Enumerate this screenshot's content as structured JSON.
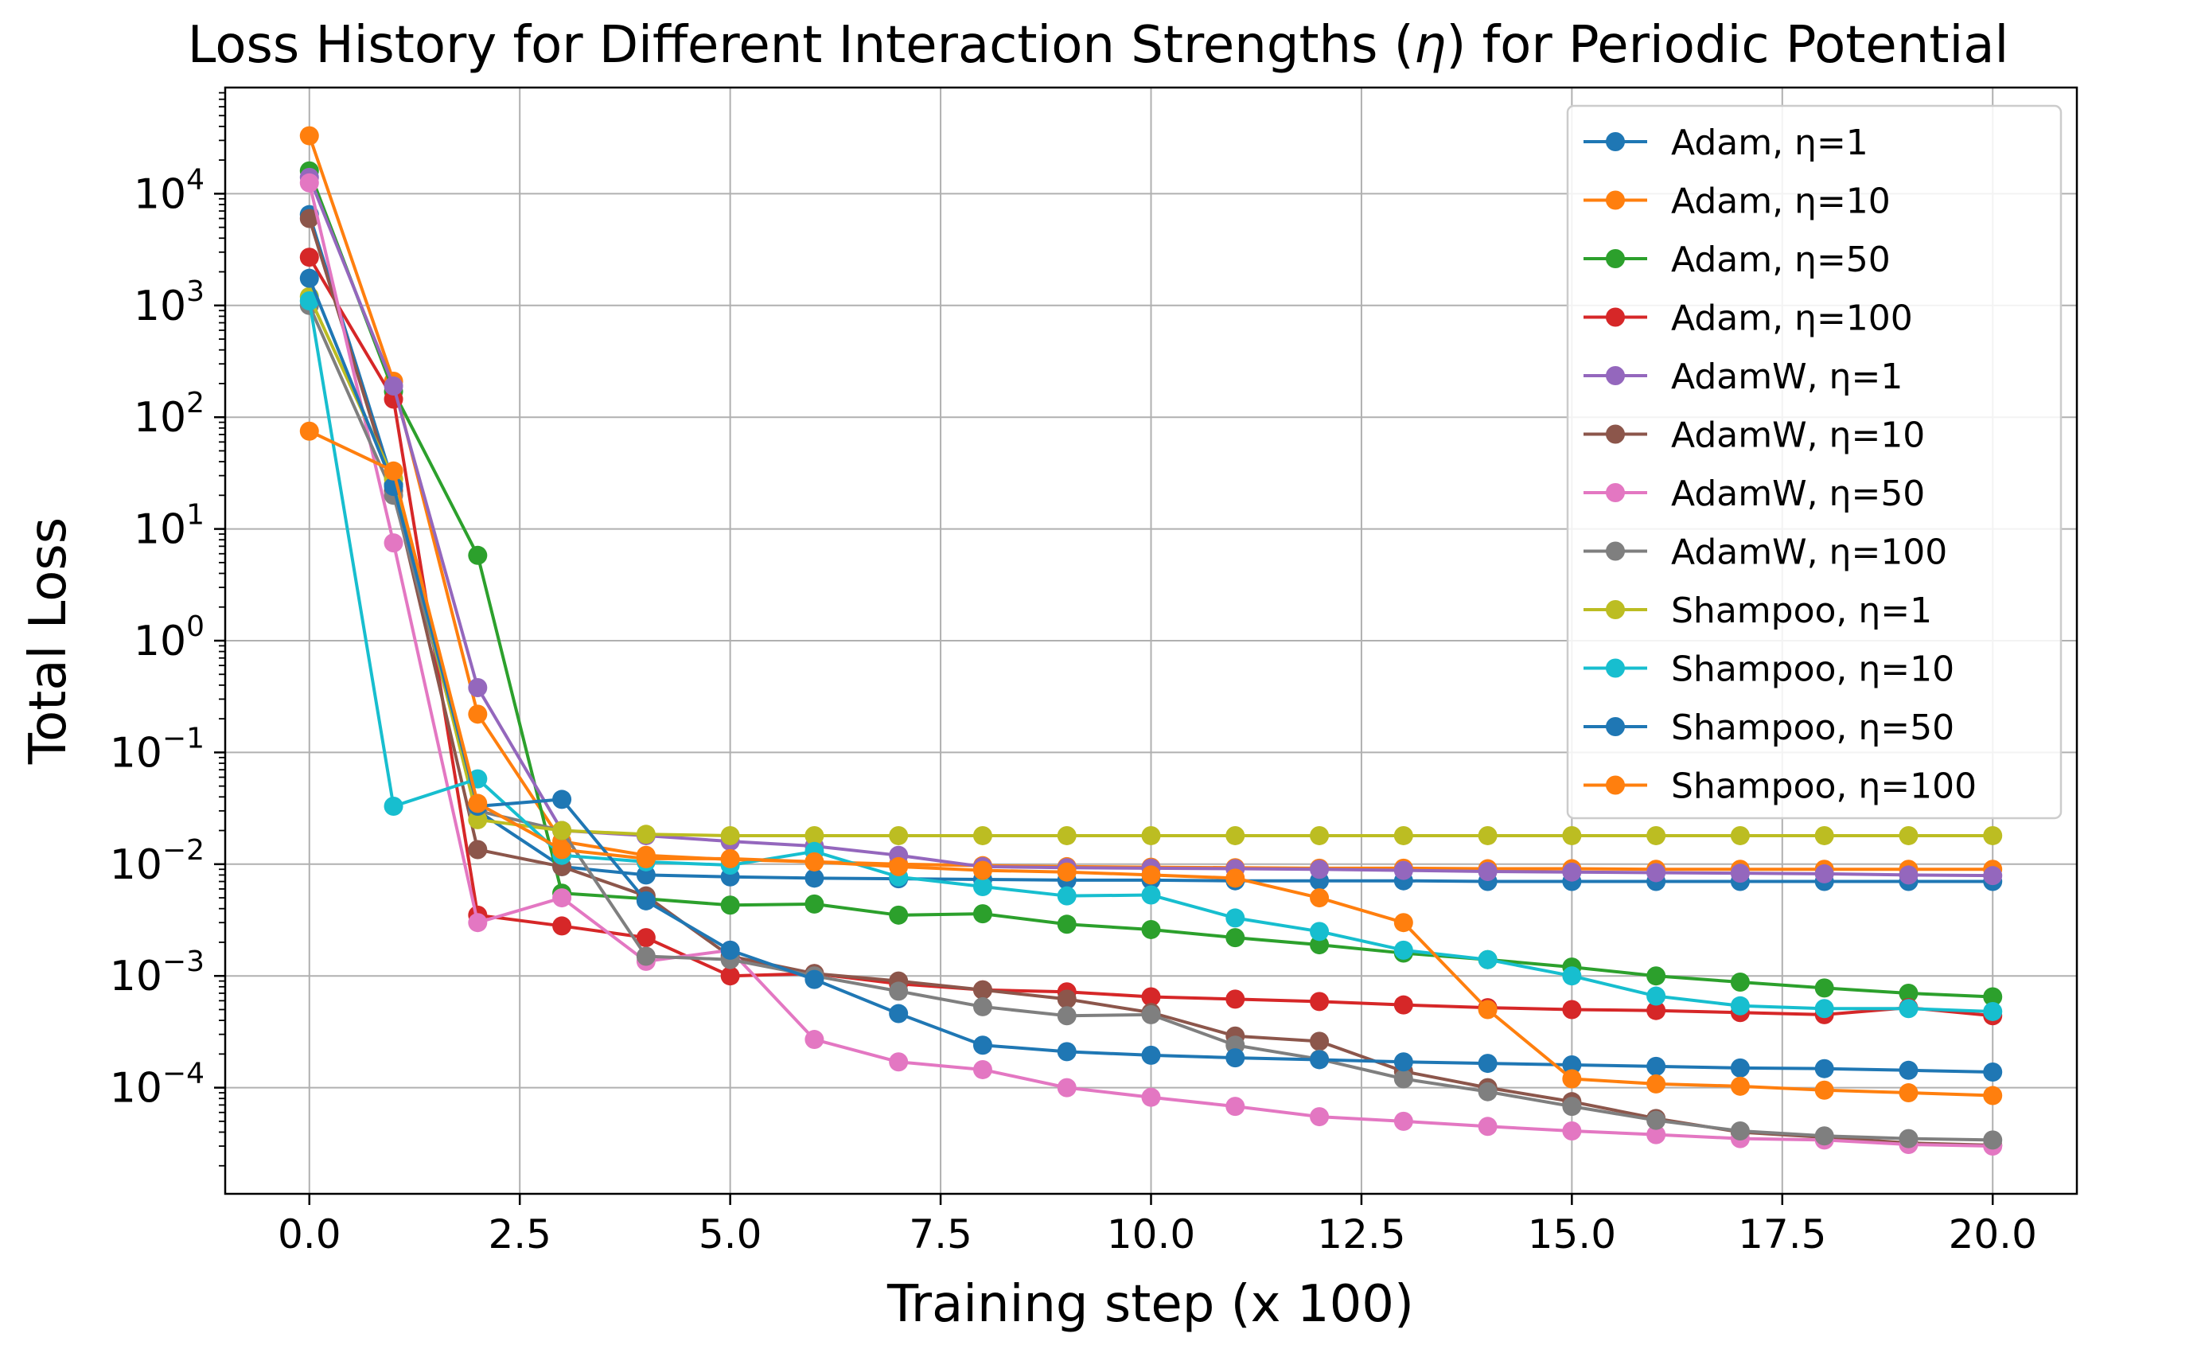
{
  "chart_data": {
    "type": "line",
    "title_prefix": "Loss History for Different Interaction Strengths (",
    "title_symbol": "η",
    "title_suffix": ") for Periodic Potential",
    "xlabel": "Training step (x 100)",
    "ylabel": "Total Loss",
    "y_scale": "log",
    "xlim": [
      -1.0,
      21.0
    ],
    "ylim_log10": [
      -4.95,
      4.95
    ],
    "grid": true,
    "legend_position": "top-right",
    "x_ticks": [
      0.0,
      2.5,
      5.0,
      7.5,
      10.0,
      12.5,
      15.0,
      17.5,
      20.0
    ],
    "x_tick_labels": [
      "0.0",
      "2.5",
      "5.0",
      "7.5",
      "10.0",
      "12.5",
      "15.0",
      "17.5",
      "20.0"
    ],
    "y_tick_base": "10",
    "y_tick_exponents": [
      "4",
      "3",
      "2",
      "1",
      "0",
      "−1",
      "−2",
      "−3",
      "−4"
    ],
    "y_tick_values": [
      4,
      3,
      2,
      1,
      0,
      -1,
      -2,
      -3,
      -4
    ],
    "x": [
      0,
      1,
      2,
      3,
      4,
      5,
      6,
      7,
      8,
      9,
      10,
      11,
      12,
      13,
      14,
      15,
      16,
      17,
      18,
      19,
      20
    ],
    "series": [
      {
        "name": "Adam, η=1",
        "color": "#1f77b4",
        "values": [
          6500,
          25,
          0.03,
          0.0095,
          0.008,
          0.0077,
          0.0075,
          0.0074,
          0.0073,
          0.0072,
          0.0072,
          0.0071,
          0.0071,
          0.0071,
          0.007,
          0.007,
          0.007,
          0.007,
          0.007,
          0.007,
          0.007
        ]
      },
      {
        "name": "Adam, η=10",
        "color": "#ff7f0e",
        "values": [
          33000,
          210,
          0.22,
          0.016,
          0.012,
          0.011,
          0.0105,
          0.01,
          0.0097,
          0.0095,
          0.0094,
          0.0093,
          0.0092,
          0.0092,
          0.0091,
          0.0091,
          0.009,
          0.009,
          0.009,
          0.009,
          0.009
        ]
      },
      {
        "name": "Adam, η=50",
        "color": "#2ca02c",
        "values": [
          16000,
          170,
          5.8,
          0.0055,
          0.0049,
          0.0043,
          0.0044,
          0.0035,
          0.0036,
          0.0029,
          0.0026,
          0.0022,
          0.0019,
          0.0016,
          0.0014,
          0.0012,
          0.001,
          0.00088,
          0.00078,
          0.0007,
          0.00065
        ]
      },
      {
        "name": "Adam, η=100",
        "color": "#d62728",
        "values": [
          2700,
          145,
          0.0035,
          0.0028,
          0.0022,
          0.001,
          0.00105,
          0.00085,
          0.00075,
          0.00072,
          0.00065,
          0.00062,
          0.00059,
          0.00055,
          0.00052,
          0.0005,
          0.00049,
          0.00047,
          0.00045,
          0.00052,
          0.00044
        ]
      },
      {
        "name": "AdamW, η=1",
        "color": "#9467bd",
        "values": [
          14000,
          190,
          0.38,
          0.02,
          0.018,
          0.016,
          0.0145,
          0.012,
          0.0095,
          0.0093,
          0.0092,
          0.0091,
          0.009,
          0.0088,
          0.0086,
          0.0085,
          0.0084,
          0.0083,
          0.0082,
          0.008,
          0.0079
        ]
      },
      {
        "name": "AdamW, η=10",
        "color": "#8c564b",
        "values": [
          6000,
          22,
          0.0135,
          0.0095,
          0.0052,
          0.0015,
          0.00105,
          0.0009,
          0.00075,
          0.00062,
          0.00047,
          0.00029,
          0.00026,
          0.00014,
          0.0001,
          7.5e-05,
          5.3e-05,
          4e-05,
          3.6e-05,
          3.2e-05,
          3.05e-05
        ]
      },
      {
        "name": "AdamW, η=50",
        "color": "#e377c2",
        "values": [
          12500,
          7.5,
          0.003,
          0.005,
          0.00135,
          0.0017,
          0.00027,
          0.00017,
          0.000145,
          0.0001,
          8.2e-05,
          6.8e-05,
          5.5e-05,
          5e-05,
          4.5e-05,
          4.1e-05,
          3.8e-05,
          3.5e-05,
          3.4e-05,
          3.1e-05,
          3e-05
        ]
      },
      {
        "name": "AdamW, η=100",
        "color": "#7f7f7f",
        "values": [
          1000,
          20,
          0.03,
          0.02,
          0.0015,
          0.0014,
          0.001,
          0.00073,
          0.00053,
          0.00044,
          0.00045,
          0.00024,
          0.00018,
          0.00012,
          9.2e-05,
          6.8e-05,
          5.1e-05,
          4.1e-05,
          3.7e-05,
          3.5e-05,
          3.4e-05
        ]
      },
      {
        "name": "Shampoo, η=1",
        "color": "#bcbd22",
        "values": [
          1200,
          28,
          0.025,
          0.02,
          0.0185,
          0.018,
          0.018,
          0.018,
          0.018,
          0.018,
          0.018,
          0.018,
          0.018,
          0.018,
          0.018,
          0.018,
          0.018,
          0.018,
          0.018,
          0.018,
          0.018
        ]
      },
      {
        "name": "Shampoo, η=10",
        "color": "#17becf",
        "values": [
          1100,
          0.033,
          0.058,
          0.012,
          0.0105,
          0.0098,
          0.013,
          0.0077,
          0.0063,
          0.0052,
          0.0053,
          0.0033,
          0.0025,
          0.0017,
          0.0014,
          0.001,
          0.00066,
          0.00054,
          0.00051,
          0.00051,
          0.00048
        ]
      },
      {
        "name": "Shampoo, η=50",
        "color": "#1f77b4",
        "values": [
          1750,
          24,
          0.033,
          0.038,
          0.0047,
          0.0017,
          0.00093,
          0.00046,
          0.00024,
          0.00021,
          0.000195,
          0.000185,
          0.000178,
          0.00017,
          0.000165,
          0.00016,
          0.000155,
          0.00015,
          0.000148,
          0.000143,
          0.000138
        ]
      },
      {
        "name": "Shampoo, η=100",
        "color": "#ff7f0e",
        "values": [
          75,
          33,
          0.035,
          0.0135,
          0.0112,
          0.0112,
          0.0105,
          0.0095,
          0.0088,
          0.0085,
          0.008,
          0.0075,
          0.005,
          0.003,
          0.0005,
          0.00012,
          0.000108,
          0.000103,
          9.5e-05,
          9e-05,
          8.5e-05
        ]
      }
    ]
  }
}
